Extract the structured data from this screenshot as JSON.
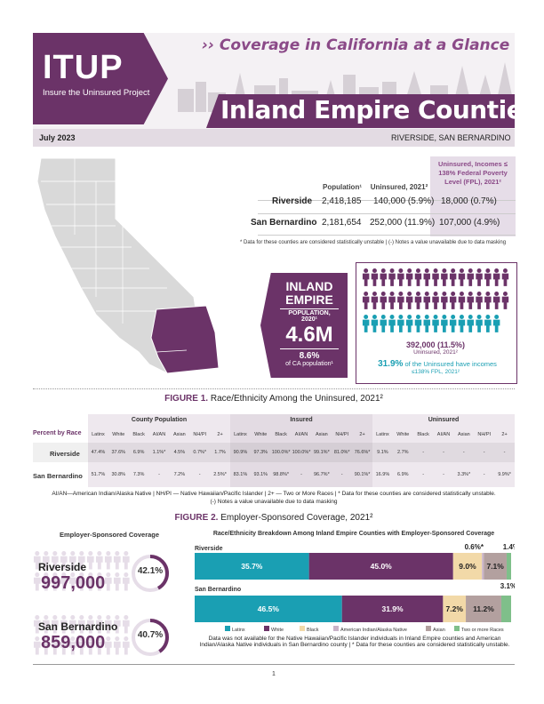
{
  "header": {
    "logo": "ITUP",
    "logo_sub": "Insure the Uninsured Project",
    "tagline": "›› Coverage in California at a Glance",
    "title": "Inland Empire Counties",
    "date": "July 2023",
    "region": "RIVERSIDE, SAN BERNARDINO"
  },
  "pop_table": {
    "headers": [
      "Population¹",
      "Uninsured, 2021²",
      "Uninsured, Incomes ≤ 138% Federal Poverty Level (FPL), 2021²"
    ],
    "rows": [
      {
        "county": "Riverside",
        "population": "2,418,185",
        "uninsured": "140,000 (5.9%)",
        "low_income": "18,000 (0.7%)"
      },
      {
        "county": "San Bernardino",
        "population": "2,181,654",
        "uninsured": "252,000 (11.9%)",
        "low_income": "107,000 (4.9%)"
      }
    ],
    "note": "* Data for these counties are considered statistically unstable | (-) Notes a value unavailable due to data masking"
  },
  "ie_box": {
    "line1": "INLAND",
    "line2": "EMPIRE",
    "line3": "POPULATION, 2020¹",
    "value": "4.6M",
    "pct": "8.6%",
    "pct_label": "of CA population¹"
  },
  "icons_box": {
    "count": "392,000 (11.5%)",
    "count_label": "Uninsured, 2021²",
    "pct": "31.9%",
    "pct_text": "of the Uninsured have incomes",
    "pct_text2": "≤138% FPL, 2021²",
    "total_icons": 50,
    "teal_icons": 16,
    "purple_color": "#6b3368",
    "teal_color": "#1a9fb3"
  },
  "figure1": {
    "prefix": "FIGURE 1.",
    "title": "Race/Ethnicity Among the Uninsured, 2021²",
    "groups": [
      "County Population",
      "Insured",
      "Uninsured"
    ],
    "row_label_header": "Percent by Race",
    "columns": [
      "Latinx",
      "White",
      "Black",
      "AI/AN",
      "Asian",
      "NH/PI",
      "2+"
    ],
    "rows": [
      {
        "county": "Riverside",
        "cells": [
          "47.4%",
          "37.6%",
          "6.9%",
          "1.1%*",
          "4.5%",
          "0.7%*",
          "1.7%",
          "90.9%",
          "97.3%",
          "100.0%*",
          "100.0%*",
          "99.1%*",
          "81.0%*",
          "76.6%*",
          "9.1%",
          "2.7%",
          "-",
          "-",
          "-",
          "-",
          "-"
        ]
      },
      {
        "county": "San Bernardino",
        "cells": [
          "51.7%",
          "30.8%",
          "7.3%",
          "-",
          "7.2%",
          "-",
          "2.5%*",
          "83.1%",
          "93.1%",
          "98.8%*",
          "-",
          "96.7%*",
          "-",
          "90.1%*",
          "16.9%",
          "6.9%",
          "-",
          "-",
          "3.3%*",
          "-",
          "9.9%*"
        ]
      }
    ],
    "note1": "AI/AN—American Indian/Alaska Native | NH/PI — Native Hawaiian/Pacific Islander | 2+ — Two or More Races | * Data for these counties are considered statistically unstable.",
    "note2": "(-) Notes a value unavailable due to data masking"
  },
  "figure2": {
    "prefix": "FIGURE 2.",
    "title": "Employer-Sponsored Coverage, 2021²",
    "left_title": "Employer-Sponsored Coverage",
    "right_title": "Race/Ethnicity Breakdown Among Inland Empire Counties with Employer-Sponsored Coverage",
    "counties": [
      {
        "name": "Riverside",
        "value": "997,000",
        "pct": "42.1%",
        "pct_num": 42.1
      },
      {
        "name": "San Bernardino",
        "value": "859,000",
        "pct": "40.7%",
        "pct_num": 40.7
      }
    ],
    "legend": [
      "Latinx",
      "White",
      "Black",
      "American Indian/Alaska Native",
      "Asian",
      "Two or more Races"
    ],
    "colors": {
      "latinx": "#1a9fb3",
      "white": "#6b3368",
      "black": "#f2d9a8",
      "aian": "#c9b3c8",
      "asian": "#b3a09f",
      "two": "#7fbf8a"
    },
    "note": "Data was not available for the Native Hawaiian/Pacific Islander individuals in Inland Empire counties and American Indian/Alaska Native individuals in San Bernardino county | * Data for these counties are considered statistically unstable."
  },
  "chart_data": {
    "type": "bar",
    "orientation": "horizontal-stacked",
    "categories": [
      "Riverside",
      "San Bernardino"
    ],
    "series": [
      {
        "name": "Latinx",
        "values": [
          35.7,
          46.5
        ]
      },
      {
        "name": "White",
        "values": [
          45.0,
          31.9
        ]
      },
      {
        "name": "Black",
        "values": [
          9.0,
          7.2
        ]
      },
      {
        "name": "American Indian/Alaska Native",
        "values": [
          0.6,
          null
        ]
      },
      {
        "name": "Asian",
        "values": [
          7.1,
          11.2
        ]
      },
      {
        "name": "Two or more Races",
        "values": [
          1.4,
          3.1
        ]
      }
    ],
    "labels": [
      [
        "35.7%",
        "45.0%",
        "9.0%",
        "0.6%*",
        "7.1%",
        "1.4%*"
      ],
      [
        "46.5%",
        "31.9%",
        "7.2%",
        "",
        "11.2%",
        "3.1%*"
      ]
    ]
  },
  "footer": {
    "page": "1"
  }
}
